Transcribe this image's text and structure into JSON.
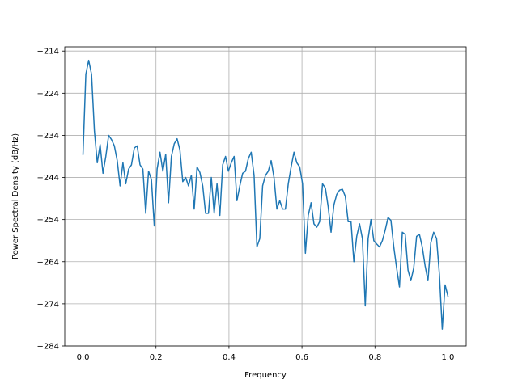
{
  "chart_data": {
    "type": "line",
    "title": "",
    "xlabel": "Frequency",
    "ylabel": "Power Spectral Density (dB/Hz)",
    "xlim": [
      -0.05,
      1.05
    ],
    "ylim": [
      -284,
      -213
    ],
    "xticks": [
      0.0,
      0.2,
      0.4,
      0.6,
      0.8,
      1.0
    ],
    "xtick_labels": [
      "0.0",
      "0.2",
      "0.4",
      "0.6",
      "0.8",
      "1.0"
    ],
    "yticks": [
      -214,
      -224,
      -234,
      -244,
      -254,
      -264,
      -274,
      -284
    ],
    "ytick_labels": [
      "−214",
      "−224",
      "−234",
      "−244",
      "−254",
      "−264",
      "−274",
      "−284"
    ],
    "grid": true,
    "series": [
      {
        "color": "#1f77b4",
        "x": [
          0.0,
          0.0078,
          0.0156,
          0.0234,
          0.0313,
          0.0391,
          0.0469,
          0.0547,
          0.0625,
          0.0703,
          0.0781,
          0.0859,
          0.0938,
          0.1016,
          0.1094,
          0.1172,
          0.125,
          0.1328,
          0.1406,
          0.1484,
          0.1563,
          0.1641,
          0.1719,
          0.1797,
          0.1875,
          0.1953,
          0.2031,
          0.2109,
          0.2188,
          0.2266,
          0.2344,
          0.2422,
          0.25,
          0.2578,
          0.2656,
          0.2734,
          0.2813,
          0.2891,
          0.2969,
          0.3047,
          0.3125,
          0.3203,
          0.3281,
          0.3359,
          0.3438,
          0.3516,
          0.3594,
          0.3672,
          0.375,
          0.3828,
          0.3906,
          0.3984,
          0.4063,
          0.4141,
          0.4219,
          0.4297,
          0.4375,
          0.4453,
          0.4531,
          0.4609,
          0.4688,
          0.4766,
          0.4844,
          0.4922,
          0.5,
          0.5078,
          0.5156,
          0.5234,
          0.5313,
          0.5391,
          0.5469,
          0.5547,
          0.5625,
          0.5703,
          0.5781,
          0.5859,
          0.5938,
          0.6016,
          0.6094,
          0.6172,
          0.625,
          0.6328,
          0.6406,
          0.6484,
          0.6563,
          0.6641,
          0.6719,
          0.6797,
          0.6875,
          0.6953,
          0.7031,
          0.7109,
          0.7188,
          0.7266,
          0.7344,
          0.7422,
          0.75,
          0.7578,
          0.7656,
          0.7734,
          0.7813,
          0.7891,
          0.7969,
          0.8047,
          0.8125,
          0.8203,
          0.8281,
          0.8359,
          0.8438,
          0.8516,
          0.8594,
          0.8672,
          0.875,
          0.8828,
          0.8906,
          0.8984,
          0.9063,
          0.9141,
          0.9219,
          0.9297,
          0.9375,
          0.9453,
          0.9531,
          0.9609,
          0.9688,
          0.9766,
          0.9844,
          0.9922,
          1.0
        ],
        "y": [
          -238.5,
          -219.5,
          -216.2,
          -219.5,
          -233.0,
          -240.5,
          -236.2,
          -243.0,
          -239.0,
          -234.0,
          -235.0,
          -236.5,
          -240.0,
          -246.0,
          -240.5,
          -245.5,
          -242.0,
          -241.0,
          -237.0,
          -236.5,
          -241.0,
          -242.0,
          -252.5,
          -242.5,
          -244.5,
          -255.5,
          -242.0,
          -238.0,
          -242.5,
          -238.5,
          -250.0,
          -239.0,
          -236.0,
          -234.8,
          -237.5,
          -245.0,
          -244.0,
          -246.0,
          -243.5,
          -251.5,
          -241.5,
          -242.8,
          -246.0,
          -252.5,
          -252.5,
          -244.0,
          -252.5,
          -245.5,
          -253.0,
          -241.0,
          -239.0,
          -242.5,
          -240.5,
          -239.0,
          -249.5,
          -246.0,
          -243.0,
          -242.5,
          -239.5,
          -238.0,
          -243.5,
          -260.5,
          -258.5,
          -246.0,
          -243.5,
          -242.5,
          -240.0,
          -244.0,
          -251.5,
          -249.5,
          -251.5,
          -251.5,
          -245.5,
          -241.5,
          -238.0,
          -240.5,
          -241.5,
          -245.5,
          -262.0,
          -253.0,
          -250.0,
          -255.0,
          -255.8,
          -254.5,
          -245.5,
          -246.5,
          -251.0,
          -257.0,
          -250.5,
          -248.0,
          -247.0,
          -246.8,
          -248.5,
          -254.5,
          -254.5,
          -264.0,
          -258.0,
          -255.0,
          -258.5,
          -274.5,
          -258.5,
          -254.0,
          -259.0,
          -259.8,
          -260.5,
          -259.0,
          -256.5,
          -253.5,
          -254.2,
          -260.5,
          -265.5,
          -270.0,
          -257.0,
          -257.5,
          -266.0,
          -268.5,
          -265.5,
          -258.0,
          -257.5,
          -260.5,
          -265.0,
          -268.5,
          -259.5,
          -257.0,
          -258.5,
          -267.0,
          -280.0,
          -269.5,
          -272.2
        ]
      }
    ]
  }
}
